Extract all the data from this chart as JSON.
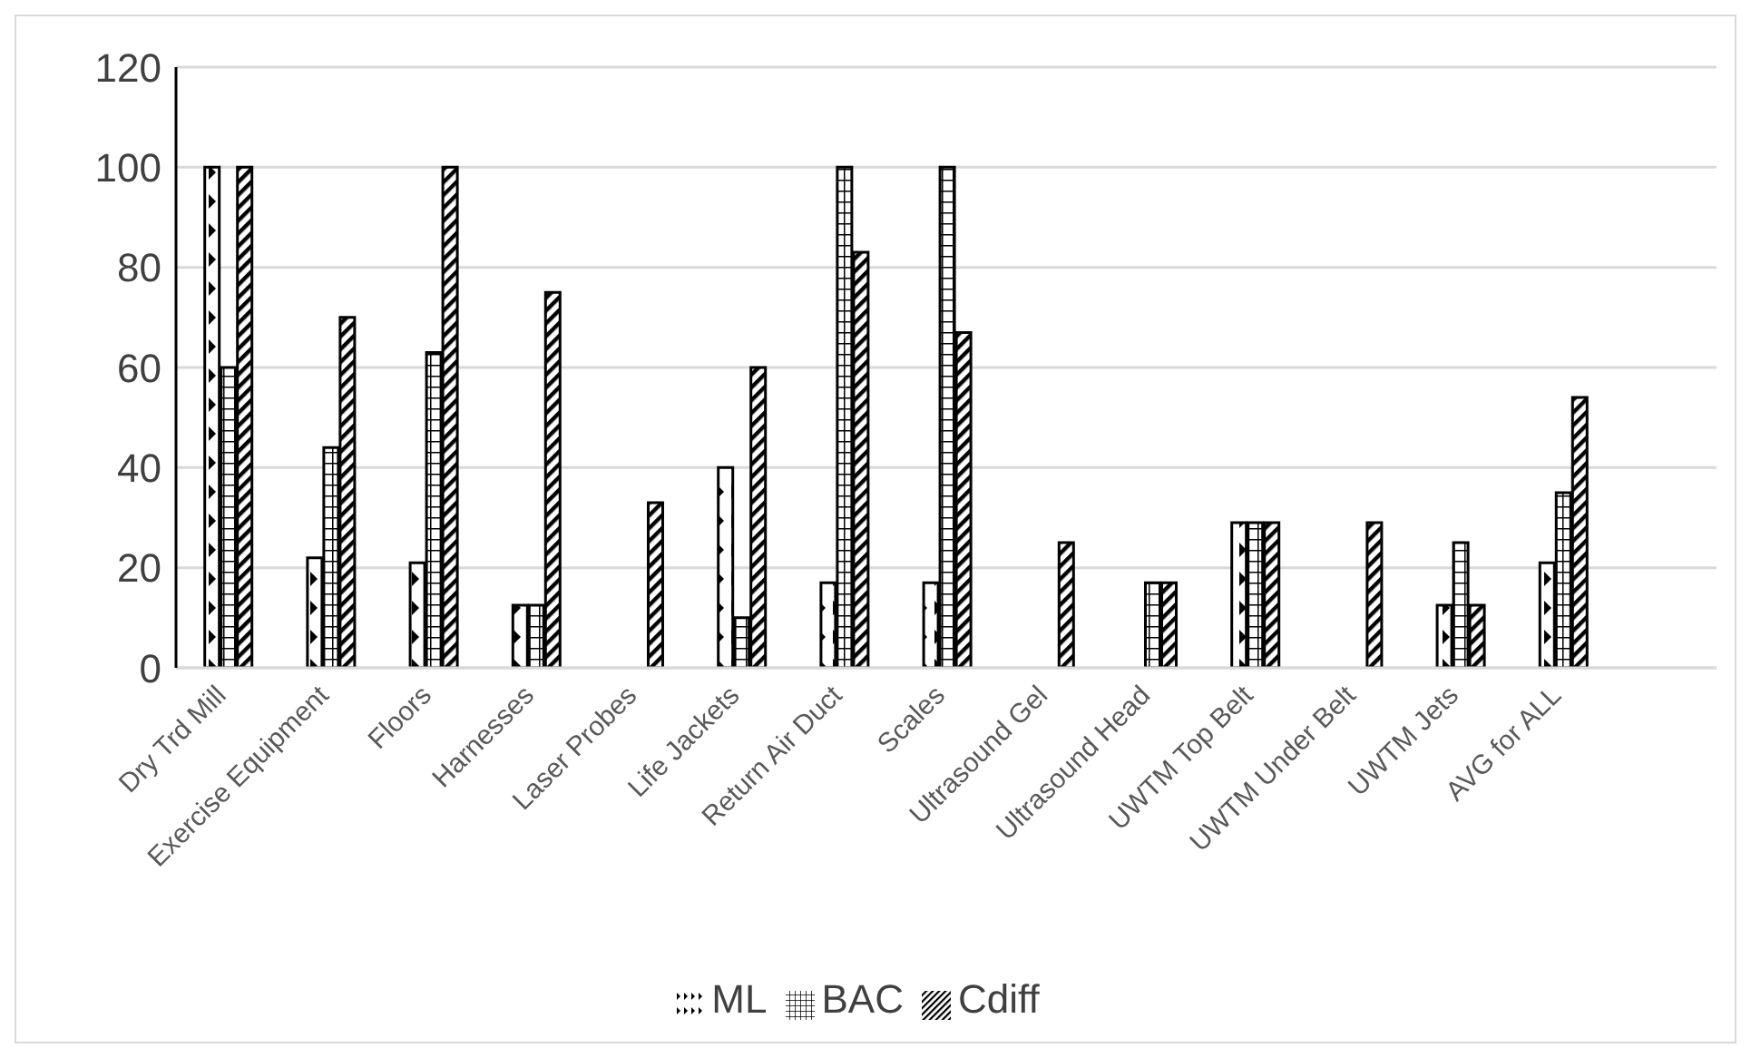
{
  "chart_data": {
    "type": "bar",
    "categories": [
      "Dry Trd Mill",
      "Exercise Equipment",
      "Floors",
      "Harnesses",
      "Laser Probes",
      "Life Jackets",
      "Return Air Duct",
      "Scales",
      "Ultrasound Gel",
      "Ultrasound Head",
      "UWTM Top Belt",
      "UWTM Under Belt",
      "UWTM Jets",
      "AVG for ALL",
      null
    ],
    "series": [
      {
        "name": "ML",
        "color": "#000000",
        "values": [
          100,
          22,
          21,
          12.5,
          0,
          40,
          17,
          17,
          0,
          0,
          29,
          0,
          12.5,
          21,
          null
        ]
      },
      {
        "name": "BAC",
        "color": "#000000",
        "values": [
          60,
          44,
          63,
          12.5,
          0,
          10,
          100,
          100,
          0,
          17,
          29,
          0,
          25,
          35,
          null
        ]
      },
      {
        "name": "Cdiff",
        "color": "#000000",
        "values": [
          100,
          70,
          100,
          75,
          33,
          60,
          83,
          67,
          25,
          17,
          29,
          29,
          12.5,
          54,
          null
        ]
      }
    ],
    "ylim": [
      0,
      120
    ],
    "yticks": [
      0,
      20,
      40,
      60,
      80,
      100,
      120
    ],
    "grid": "y",
    "legend": "bottom"
  }
}
